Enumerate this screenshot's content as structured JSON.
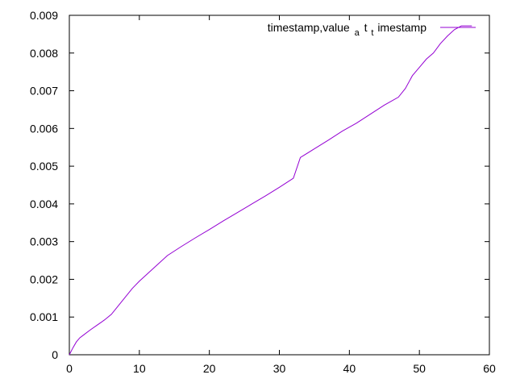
{
  "chart_data": {
    "type": "line",
    "title": "",
    "xlabel": "",
    "ylabel": "",
    "xlim": [
      0,
      60
    ],
    "ylim": [
      0,
      0.009
    ],
    "x_ticks": [
      "0",
      "10",
      "20",
      "30",
      "40",
      "50",
      "60"
    ],
    "y_ticks": [
      "0",
      "0.001",
      "0.002",
      "0.003",
      "0.004",
      "0.005",
      "0.006",
      "0.007",
      "0.008",
      "0.009"
    ],
    "grid": false,
    "legend_position": "top-right",
    "legend": {
      "prefix": "timestamp,value",
      "sub1": "a",
      "mid": "t",
      "sub2": "t",
      "suffix": "imestamp"
    },
    "series": [
      {
        "color": "#9400d3",
        "x": [
          0,
          0.5,
          1,
          1.5,
          2,
          3,
          4,
          5,
          6,
          7,
          8,
          9,
          10,
          12,
          14,
          16,
          18,
          20,
          22,
          24,
          26,
          28,
          30,
          31,
          32,
          33,
          35,
          37,
          39,
          41,
          43,
          45,
          47,
          48,
          49,
          50,
          51,
          52,
          53,
          54,
          55,
          56,
          57.5
        ],
        "y": [
          0,
          0.00018,
          0.00034,
          0.00045,
          0.00052,
          0.00066,
          0.00079,
          0.00092,
          0.00107,
          0.0013,
          0.00153,
          0.00176,
          0.00195,
          0.00229,
          0.00263,
          0.00287,
          0.0031,
          0.00332,
          0.00355,
          0.00377,
          0.00399,
          0.00421,
          0.00444,
          0.00456,
          0.00468,
          0.00523,
          0.00546,
          0.00569,
          0.00593,
          0.00614,
          0.00638,
          0.00662,
          0.00683,
          0.00706,
          0.0074,
          0.00762,
          0.00784,
          0.008,
          0.00825,
          0.00845,
          0.00862,
          0.00872,
          0.00872
        ]
      }
    ]
  }
}
